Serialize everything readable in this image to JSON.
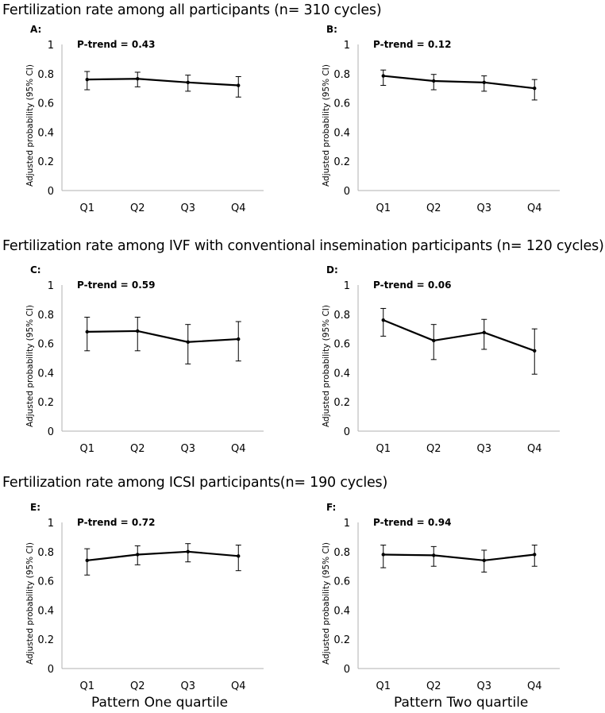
{
  "sections": [
    {
      "title": "Fertilization rate among all participants (n= 310 cycles)"
    },
    {
      "title": "Fertilization rate among IVF with conventional insemination participants (n= 120 cycles)"
    },
    {
      "title": "Fertilization rate among ICSI participants(n= 190 cycles)"
    }
  ],
  "x_axis_labels": [
    "Pattern One quartile",
    "Pattern Two quartile"
  ],
  "chart_data": [
    {
      "type": "line",
      "panel": "A:",
      "annotation": "P-trend = 0.43",
      "ylabel": "Adjusted probability (95% CI)",
      "xlabel": "",
      "categories": [
        "Q1",
        "Q2",
        "Q3",
        "Q4"
      ],
      "ylim": [
        0,
        1
      ],
      "yticks": [
        "0",
        "0.2",
        "0.4",
        "0.6",
        "0.8",
        "1"
      ],
      "grid": false,
      "values": [
        0.76,
        0.765,
        0.74,
        0.72
      ],
      "lower": [
        0.69,
        0.71,
        0.68,
        0.64
      ],
      "upper": [
        0.815,
        0.81,
        0.79,
        0.78
      ]
    },
    {
      "type": "line",
      "panel": "B:",
      "annotation": "P-trend = 0.12",
      "ylabel": "Adjusted probability (95% CI)",
      "xlabel": "",
      "categories": [
        "Q1",
        "Q2",
        "Q3",
        "Q4"
      ],
      "ylim": [
        0,
        1
      ],
      "yticks": [
        "0",
        "0.2",
        "0.4",
        "0.6",
        "0.8",
        "1"
      ],
      "grid": false,
      "values": [
        0.785,
        0.75,
        0.74,
        0.7
      ],
      "lower": [
        0.72,
        0.69,
        0.68,
        0.62
      ],
      "upper": [
        0.825,
        0.795,
        0.785,
        0.76
      ]
    },
    {
      "type": "line",
      "panel": "C:",
      "annotation": "P-trend = 0.59",
      "ylabel": "Adjusted probability (95% CI)",
      "xlabel": "",
      "categories": [
        "Q1",
        "Q2",
        "Q3",
        "Q4"
      ],
      "ylim": [
        0,
        1
      ],
      "yticks": [
        "0",
        "0.2",
        "0.4",
        "0.6",
        "0.8",
        "1"
      ],
      "grid": false,
      "values": [
        0.68,
        0.685,
        0.61,
        0.63
      ],
      "lower": [
        0.55,
        0.55,
        0.46,
        0.48
      ],
      "upper": [
        0.78,
        0.78,
        0.73,
        0.75
      ]
    },
    {
      "type": "line",
      "panel": "D:",
      "annotation": "P-trend = 0.06",
      "ylabel": "Adjusted probability (95% CI)",
      "xlabel": "",
      "categories": [
        "Q1",
        "Q2",
        "Q3",
        "Q4"
      ],
      "ylim": [
        0,
        1
      ],
      "yticks": [
        "0",
        "0.2",
        "0.4",
        "0.6",
        "0.8",
        "1"
      ],
      "grid": false,
      "values": [
        0.76,
        0.62,
        0.675,
        0.55
      ],
      "lower": [
        0.65,
        0.49,
        0.56,
        0.39
      ],
      "upper": [
        0.84,
        0.73,
        0.765,
        0.7
      ]
    },
    {
      "type": "line",
      "panel": "E:",
      "annotation": "P-trend = 0.72",
      "ylabel": "Adjusted probability (95% CI)",
      "xlabel": "Pattern One quartile",
      "categories": [
        "Q1",
        "Q2",
        "Q3",
        "Q4"
      ],
      "ylim": [
        0,
        1
      ],
      "yticks": [
        "0",
        "0.2",
        "0.4",
        "0.6",
        "0.8",
        "1"
      ],
      "grid": false,
      "values": [
        0.74,
        0.78,
        0.8,
        0.77
      ],
      "lower": [
        0.64,
        0.71,
        0.73,
        0.67
      ],
      "upper": [
        0.82,
        0.84,
        0.855,
        0.845
      ]
    },
    {
      "type": "line",
      "panel": "F:",
      "annotation": "P-trend = 0.94",
      "ylabel": "Adjusted probability (95% CI)",
      "xlabel": "Pattern Two quartile",
      "categories": [
        "Q1",
        "Q2",
        "Q3",
        "Q4"
      ],
      "ylim": [
        0,
        1
      ],
      "yticks": [
        "0",
        "0.2",
        "0.4",
        "0.6",
        "0.8",
        "1"
      ],
      "grid": false,
      "values": [
        0.78,
        0.775,
        0.74,
        0.78
      ],
      "lower": [
        0.69,
        0.7,
        0.66,
        0.7
      ],
      "upper": [
        0.845,
        0.835,
        0.81,
        0.845
      ]
    }
  ]
}
